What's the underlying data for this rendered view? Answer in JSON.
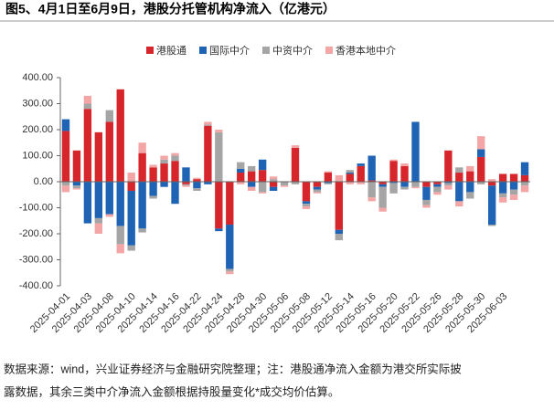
{
  "chart_data": {
    "type": "bar",
    "stacked": true,
    "title": "图5、4月1日至6月9日，港股分托管机构净流入（亿港元）",
    "notes": [
      "数据来源：wind，兴业证券经济与金融研究院整理；注：港股通净流入金额为港交所实际披",
      "露数据，其余三类中介净流入金额根据持股量变化*成交均价估算。"
    ],
    "categories": [
      "2025-04-01",
      null,
      "2025-04-03",
      null,
      "2025-04-08",
      null,
      "2025-04-10",
      null,
      "2025-04-14",
      null,
      "2025-04-16",
      null,
      "2025-04-22",
      null,
      "2025-04-24",
      null,
      "2025-04-28",
      null,
      "2025-04-30",
      null,
      "2025-05-06",
      null,
      "2025-05-08",
      null,
      "2025-05-12",
      null,
      "2025-05-14",
      null,
      "2025-05-16",
      null,
      "2025-05-20",
      null,
      "2025-05-22",
      null,
      "2025-05-26",
      null,
      "2025-05-28",
      null,
      "2025-05-30",
      null,
      "2025-06-03",
      null,
      null
    ],
    "series": [
      {
        "name": "港股通",
        "color": "#d7262b",
        "values": [
          195,
          120,
          280,
          190,
          230,
          355,
          -35,
          110,
          55,
          70,
          80,
          -10,
          10,
          215,
          -180,
          -165,
          35,
          40,
          45,
          -20,
          0,
          130,
          -75,
          -20,
          35,
          -185,
          30,
          60,
          5,
          -10,
          80,
          60,
          0,
          -20,
          -10,
          120,
          35,
          40,
          95,
          -15,
          30,
          30,
          25
        ]
      },
      {
        "name": "国际中介",
        "color": "#1f64b4",
        "values": [
          45,
          -15,
          -160,
          -140,
          -125,
          -170,
          -210,
          -180,
          -55,
          -20,
          -85,
          55,
          -25,
          -10,
          -10,
          -170,
          15,
          -20,
          40,
          -15,
          0,
          0,
          -10,
          -10,
          -5,
          -15,
          5,
          10,
          95,
          -10,
          -5,
          -20,
          230,
          -50,
          -10,
          -5,
          -75,
          -40,
          30,
          -150,
          -45,
          -30,
          50
        ]
      },
      {
        "name": "中资中介",
        "color": "#a5a5a5",
        "values": [
          -15,
          -10,
          20,
          -20,
          45,
          -70,
          -20,
          -15,
          -10,
          15,
          20,
          -5,
          -10,
          5,
          190,
          -10,
          25,
          20,
          -40,
          10,
          -15,
          -10,
          -10,
          -10,
          -5,
          -25,
          10,
          0,
          -60,
          -80,
          -40,
          -10,
          -20,
          -20,
          -20,
          -10,
          20,
          -25,
          -10,
          -5,
          -15,
          -20,
          -15
        ]
      },
      {
        "name": "香港本地中介",
        "color": "#f4a6a6",
        "values": [
          -25,
          -5,
          30,
          -40,
          -10,
          -35,
          35,
          40,
          10,
          15,
          10,
          -5,
          5,
          10,
          10,
          -10,
          -10,
          -15,
          -5,
          10,
          -5,
          10,
          -10,
          -5,
          5,
          25,
          -10,
          -10,
          -15,
          -15,
          5,
          10,
          -5,
          -10,
          -10,
          -15,
          -20,
          20,
          50,
          10,
          -20,
          -20,
          -25
        ]
      }
    ],
    "ylim": [
      -400,
      400
    ],
    "yticks": [
      {
        "value": -400,
        "label": "-400.00"
      },
      {
        "value": -300,
        "label": "-300.00"
      },
      {
        "value": -200,
        "label": "-200.00"
      },
      {
        "value": -100,
        "label": "-100.00"
      },
      {
        "value": 0,
        "label": "0.00"
      },
      {
        "value": 100,
        "label": "100.00"
      },
      {
        "value": 200,
        "label": "200.00"
      },
      {
        "value": 300,
        "label": "300.00"
      },
      {
        "value": 400,
        "label": "400.00"
      }
    ],
    "grid": false,
    "legend": "top"
  }
}
